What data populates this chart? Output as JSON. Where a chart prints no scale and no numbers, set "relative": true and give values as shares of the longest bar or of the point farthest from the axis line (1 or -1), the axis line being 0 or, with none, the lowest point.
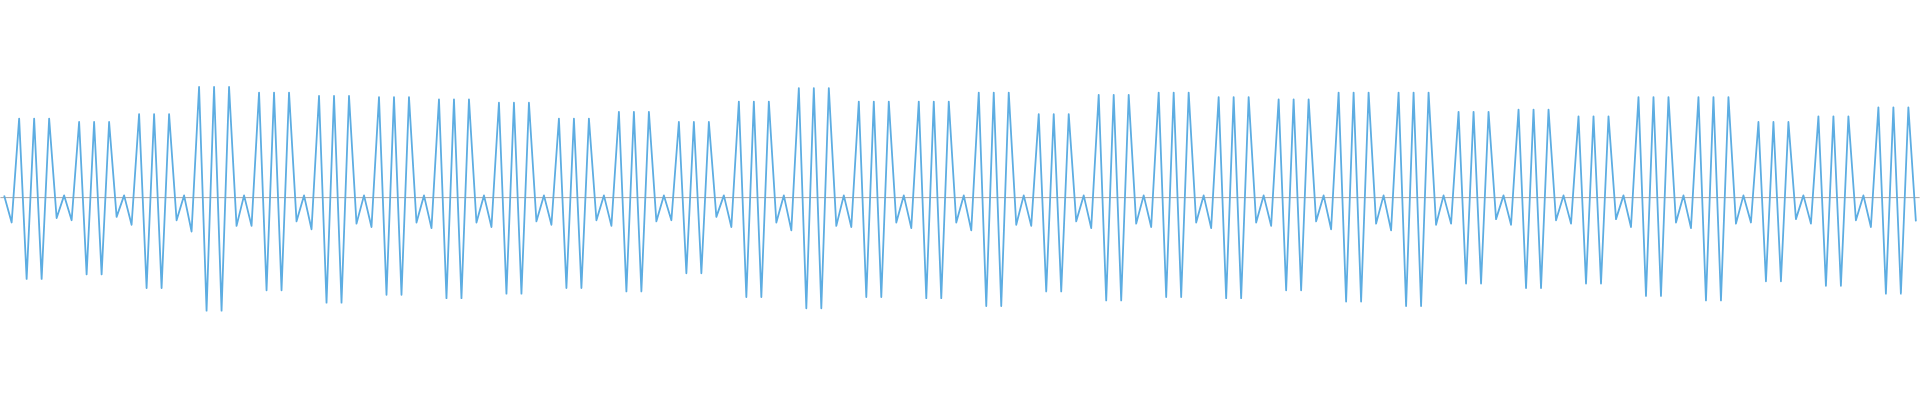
{
  "chart_data": {
    "type": "line",
    "relative": true,
    "categories": [
      null,
      null,
      null,
      null,
      null,
      null,
      null,
      null,
      null,
      null,
      null,
      null,
      null,
      null,
      null,
      null,
      null,
      null,
      null,
      null,
      null,
      null,
      null,
      null,
      null,
      null,
      null,
      null,
      null,
      null,
      null,
      null,
      null,
      null,
      null,
      null,
      null,
      null,
      null,
      null,
      null,
      null,
      null,
      null,
      null,
      null,
      null,
      null,
      null,
      null,
      null,
      null,
      null,
      null,
      null,
      null,
      null,
      null,
      null,
      null,
      null,
      null,
      null,
      null,
      null,
      null,
      null,
      null,
      null,
      null,
      null,
      null,
      null,
      null,
      null,
      null,
      null,
      null,
      null,
      null,
      null,
      null,
      null,
      null,
      null,
      null,
      null,
      null,
      null,
      null,
      null,
      null,
      null,
      null,
      null,
      null,
      null,
      null,
      null,
      null,
      null,
      null,
      null,
      null,
      null,
      null,
      null,
      null,
      null,
      null,
      null,
      null,
      null,
      null,
      null,
      null,
      null,
      null,
      null,
      null,
      null,
      null,
      null,
      null,
      null,
      null,
      null,
      null,
      null,
      null,
      null,
      null,
      null,
      null,
      null,
      null,
      null,
      null,
      null,
      null,
      null,
      null,
      null,
      null,
      null,
      null,
      null,
      null,
      null,
      null,
      null,
      null,
      null,
      null,
      null,
      null,
      null,
      null,
      null,
      null,
      null,
      null,
      null,
      null,
      null,
      null,
      null,
      null,
      null,
      null,
      null,
      null,
      null,
      null,
      null,
      null,
      null,
      null,
      null,
      null,
      null,
      null,
      null,
      null,
      null,
      null,
      null,
      null,
      null,
      null,
      null,
      null,
      null,
      null,
      null,
      null,
      null,
      null,
      null,
      null,
      null,
      null,
      null,
      null,
      null,
      null,
      null,
      null,
      null,
      null,
      null,
      null,
      null,
      null,
      null,
      null,
      null,
      null,
      null,
      null,
      null,
      null,
      null,
      null,
      null,
      null,
      null,
      null,
      null,
      null,
      null,
      null,
      null,
      null,
      null,
      null,
      null,
      null,
      null,
      null,
      null,
      null,
      null,
      null,
      null,
      null,
      null,
      null,
      null,
      null,
      null,
      null,
      null,
      null,
      null,
      null
    ],
    "series": [
      {
        "color": "#5dade2",
        "values": [
          0.02,
          -0.22,
          0.7,
          -0.72,
          0.7,
          -0.72,
          0.7,
          -0.18,
          0.02,
          -0.2,
          0.67,
          -0.68,
          0.67,
          -0.68,
          0.67,
          -0.17,
          0.02,
          -0.24,
          0.74,
          -0.8,
          0.74,
          -0.8,
          0.74,
          -0.2,
          0.02,
          -0.3,
          0.98,
          -1,
          0.98,
          -1,
          0.98,
          -0.25,
          0.02,
          -0.25,
          0.93,
          -0.82,
          0.93,
          -0.82,
          0.93,
          -0.21,
          0.02,
          -0.28,
          0.9,
          -0.93,
          0.9,
          -0.93,
          0.9,
          -0.23,
          0.02,
          -0.26,
          0.89,
          -0.86,
          0.89,
          -0.86,
          0.89,
          -0.22,
          0.02,
          -0.27,
          0.87,
          -0.89,
          0.87,
          -0.89,
          0.87,
          -0.22,
          0.02,
          -0.26,
          0.84,
          -0.85,
          0.84,
          -0.85,
          0.84,
          -0.21,
          0.02,
          -0.24,
          0.7,
          -0.8,
          0.7,
          -0.8,
          0.7,
          -0.2,
          0.02,
          -0.25,
          0.76,
          -0.83,
          0.76,
          -0.83,
          0.76,
          -0.21,
          0.02,
          -0.2,
          0.67,
          -0.67,
          0.67,
          -0.67,
          0.67,
          -0.17,
          0.02,
          -0.26,
          0.85,
          -0.88,
          0.85,
          -0.88,
          0.85,
          -0.22,
          0.02,
          -0.29,
          0.97,
          -0.98,
          0.97,
          -0.98,
          0.97,
          -0.25,
          0.02,
          -0.26,
          0.85,
          -0.88,
          0.85,
          -0.88,
          0.85,
          -0.22,
          0.02,
          -0.27,
          0.85,
          -0.89,
          0.85,
          -0.89,
          0.85,
          -0.22,
          0.02,
          -0.29,
          0.93,
          -0.96,
          0.93,
          -0.96,
          0.93,
          -0.24,
          0.02,
          -0.25,
          0.74,
          -0.83,
          0.74,
          -0.83,
          0.74,
          -0.21,
          0.02,
          -0.27,
          0.91,
          -0.91,
          0.91,
          -0.91,
          0.91,
          -0.23,
          0.02,
          -0.26,
          0.93,
          -0.88,
          0.93,
          -0.88,
          0.93,
          -0.22,
          0.02,
          -0.27,
          0.89,
          -0.89,
          0.89,
          -0.89,
          0.89,
          -0.22,
          0.02,
          -0.25,
          0.87,
          -0.82,
          0.87,
          -0.82,
          0.87,
          -0.21,
          0.02,
          -0.28,
          0.93,
          -0.92,
          0.93,
          -0.92,
          0.93,
          -0.23,
          0.02,
          -0.29,
          0.93,
          -0.96,
          0.93,
          -0.96,
          0.93,
          -0.24,
          0.02,
          -0.23,
          0.76,
          -0.76,
          0.76,
          -0.76,
          0.76,
          -0.19,
          0.02,
          -0.24,
          0.78,
          -0.8,
          0.78,
          -0.8,
          0.78,
          -0.2,
          0.02,
          -0.23,
          0.72,
          -0.76,
          0.72,
          -0.76,
          0.72,
          -0.19,
          0.02,
          -0.26,
          0.89,
          -0.87,
          0.89,
          -0.87,
          0.89,
          -0.22,
          0.02,
          -0.27,
          0.89,
          -0.91,
          0.89,
          -0.91,
          0.89,
          -0.23,
          0.02,
          -0.22,
          0.67,
          -0.74,
          0.67,
          -0.74,
          0.67,
          -0.19,
          0.02,
          -0.23,
          0.72,
          -0.78,
          0.72,
          -0.78,
          0.72,
          -0.2,
          0.02,
          -0.26,
          0.8,
          -0.85,
          0.8,
          -0.85,
          0.8,
          -0.21
        ]
      }
    ]
  }
}
